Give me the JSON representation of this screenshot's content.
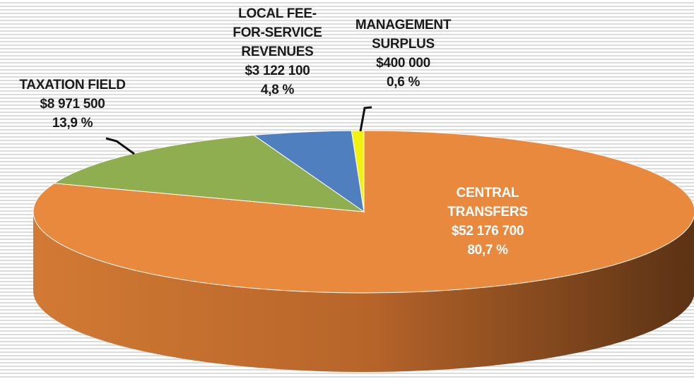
{
  "chart_data": {
    "type": "pie",
    "categories": [
      "CENTRAL TRANSFERS",
      "TAXATION FIELD",
      "LOCAL FEE-FOR-SERVICE REVENUES",
      "MANAGEMENT SURPLUS"
    ],
    "values": [
      80.7,
      13.9,
      4.8,
      0.6
    ],
    "value_labels": [
      "80,7 %",
      "13,9 %",
      "4,8 %",
      "0,6 %"
    ],
    "amounts": [
      52176700,
      8971500,
      3122100,
      400000
    ],
    "amount_labels": [
      "$52 176 700",
      "$8 971 500",
      "$3 122 100",
      "$400 000"
    ],
    "colors": [
      "#e8893e",
      "#8fae4f",
      "#4f7fbf",
      "#f2f20e"
    ]
  }
}
